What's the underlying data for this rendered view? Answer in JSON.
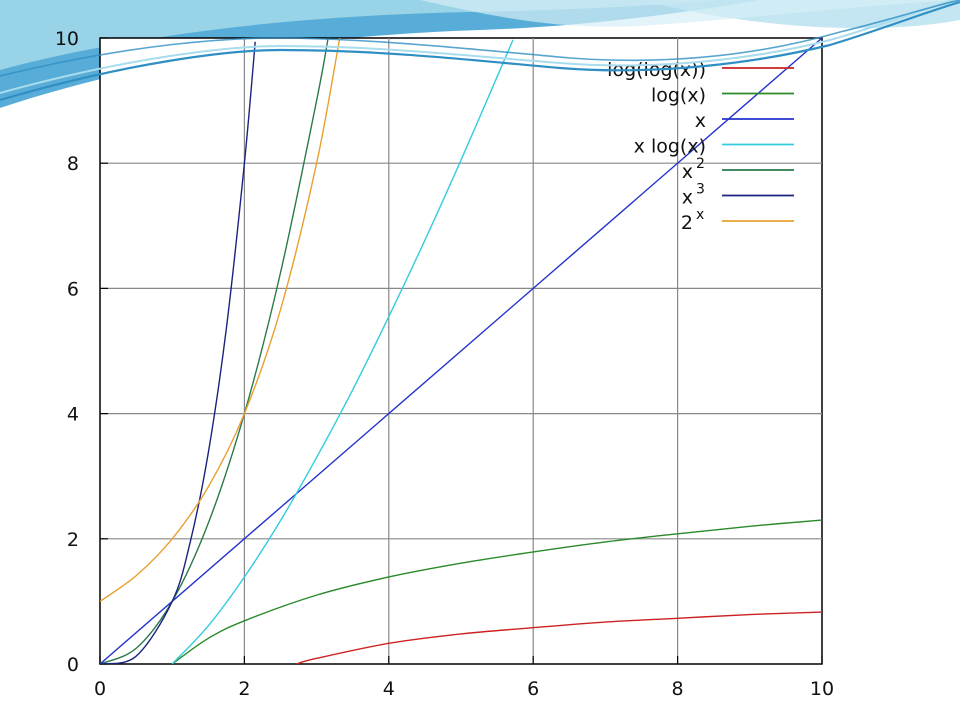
{
  "chart_data": {
    "type": "line",
    "xlim": [
      0,
      10
    ],
    "ylim": [
      0,
      10
    ],
    "x_ticks": [
      "0",
      "2",
      "4",
      "6",
      "8",
      "10"
    ],
    "y_ticks": [
      "0",
      "2",
      "4",
      "6",
      "8",
      "10"
    ],
    "grid": true,
    "legend_position": "top-right",
    "series": [
      {
        "name": "log(log(x))",
        "color": "#cc2222",
        "x": [
          2.72,
          3.0,
          4.0,
          5.0,
          6.0,
          7.0,
          8.0,
          9.0,
          10.0
        ],
        "y": [
          0.0,
          0.09,
          0.33,
          0.48,
          0.58,
          0.67,
          0.73,
          0.79,
          0.83
        ]
      },
      {
        "name": "log(x)",
        "color": "#2a8a2a",
        "x": [
          1.0,
          1.5,
          2.0,
          3.0,
          4.0,
          5.0,
          6.0,
          7.0,
          8.0,
          9.0,
          10.0
        ],
        "y": [
          0.0,
          0.41,
          0.69,
          1.1,
          1.39,
          1.61,
          1.79,
          1.95,
          2.08,
          2.2,
          2.3
        ]
      },
      {
        "name": "x",
        "color": "#2233cc",
        "x": [
          0,
          10
        ],
        "y": [
          0,
          10
        ]
      },
      {
        "name": "x log(x)",
        "color": "#33ccdd",
        "x": [
          1.0,
          1.5,
          2.0,
          2.5,
          3.0,
          3.5,
          4.0,
          4.5,
          5.0,
          5.5,
          5.72
        ],
        "y": [
          0.0,
          0.61,
          1.39,
          2.29,
          3.3,
          4.38,
          5.55,
          6.77,
          8.05,
          9.38,
          9.97
        ]
      },
      {
        "name": "x^2",
        "color": "#2a7a4a",
        "x": [
          0.0,
          0.5,
          1.0,
          1.5,
          2.0,
          2.5,
          3.0,
          3.16
        ],
        "y": [
          0.0,
          0.25,
          1.0,
          2.25,
          4.0,
          6.25,
          9.0,
          10.0
        ]
      },
      {
        "name": "x^3",
        "color": "#1a237e",
        "x": [
          0.0,
          0.5,
          1.0,
          1.25,
          1.5,
          1.75,
          2.0,
          2.15
        ],
        "y": [
          0.0,
          0.125,
          1.0,
          1.95,
          3.375,
          5.36,
          8.0,
          9.94
        ]
      },
      {
        "name": "2^x",
        "color": "#e8a030",
        "x": [
          0.0,
          0.5,
          1.0,
          1.5,
          2.0,
          2.5,
          3.0,
          3.32
        ],
        "y": [
          1.0,
          1.41,
          2.0,
          2.83,
          4.0,
          5.66,
          8.0,
          10.0
        ]
      }
    ],
    "legend": [
      {
        "label": "log(log(x))",
        "sup": "",
        "color": "#cc2222"
      },
      {
        "label": "log(x)",
        "sup": "",
        "color": "#2a8a2a"
      },
      {
        "label": "x",
        "sup": "",
        "color": "#2233cc"
      },
      {
        "label": "x log(x)",
        "sup": "",
        "color": "#33ccdd"
      },
      {
        "label": "x",
        "sup": "2",
        "color": "#2a7a4a"
      },
      {
        "label": "x",
        "sup": "3",
        "color": "#1a237e"
      },
      {
        "label": "2",
        "sup": "x",
        "color": "#e8a030"
      }
    ]
  },
  "theme": {
    "wave_dark": "#3a9fd0",
    "wave_light": "#a9dcec",
    "wave_line": "#2f8fc4",
    "grid_color": "#888888",
    "axis_color": "#000000"
  }
}
